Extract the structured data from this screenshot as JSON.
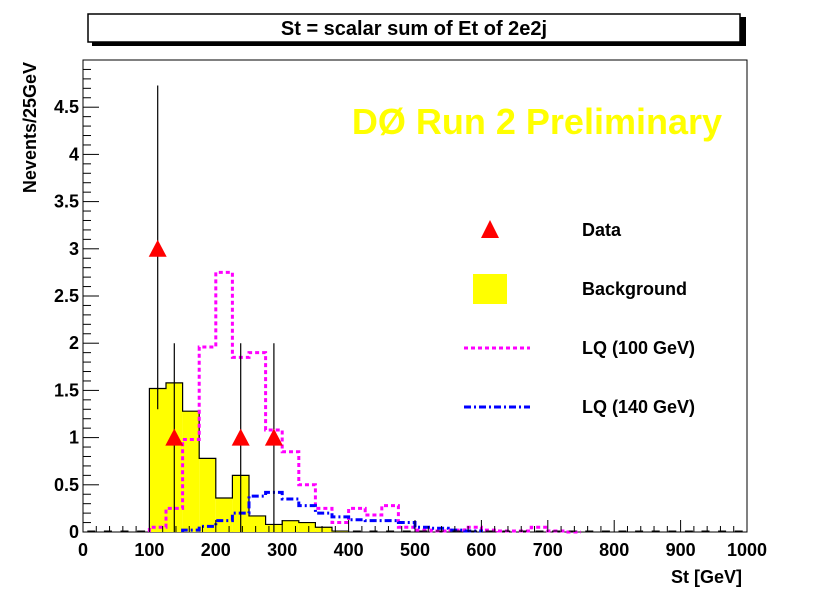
{
  "chart_data": {
    "type": "bar",
    "title": "St = scalar sum of Et of 2e2j",
    "xlabel": "St [GeV]",
    "ylabel": "Nevents/25GeV",
    "annotation": "DØ Run 2 Preliminary",
    "xlim": [
      0,
      1000
    ],
    "ylim": [
      0,
      5
    ],
    "bin_width": 25,
    "x_ticks": [
      0,
      100,
      200,
      300,
      400,
      500,
      600,
      700,
      800,
      900,
      1000
    ],
    "x_tick_labels": [
      "0",
      "100",
      "200",
      "300",
      "400",
      "500",
      "600",
      "700",
      "800",
      "900",
      "1000"
    ],
    "y_ticks": [
      0,
      0.5,
      1,
      1.5,
      2,
      2.5,
      3,
      3.5,
      4,
      4.5
    ],
    "y_tick_labels": [
      "0",
      "0.5",
      "1",
      "1.5",
      "2",
      "2.5",
      "3",
      "3.5",
      "4",
      "4.5"
    ],
    "colors": {
      "data": "#ff0000",
      "background": "#ffff00",
      "lq100": "#ff00ff",
      "lq140": "#0000ff",
      "watermark": "#ffff00"
    },
    "legend": [
      {
        "key": "data",
        "label": "Data"
      },
      {
        "key": "background",
        "label": "Background"
      },
      {
        "key": "lq100",
        "label": "LQ (100 GeV)"
      },
      {
        "key": "lq140",
        "label": "LQ (140 GeV)"
      }
    ],
    "background": {
      "bin_edges": [
        100,
        125,
        150,
        175,
        200,
        225,
        250,
        275,
        300,
        325,
        350,
        375,
        400
      ],
      "values": [
        1.52,
        1.58,
        1.28,
        0.78,
        0.36,
        0.6,
        0.17,
        0.08,
        0.12,
        0.1,
        0.05,
        0.01
      ]
    },
    "lq100": {
      "bin_edges": [
        100,
        125,
        150,
        175,
        200,
        225,
        250,
        275,
        300,
        325,
        350,
        375,
        400,
        425,
        450,
        475,
        500,
        525,
        550,
        575,
        600,
        625,
        650,
        675,
        700,
        725,
        750
      ],
      "values": [
        0.05,
        0.25,
        0.98,
        1.96,
        2.75,
        1.85,
        1.9,
        1.08,
        0.85,
        0.5,
        0.25,
        0.1,
        0.25,
        0.18,
        0.28,
        0.05,
        0.02,
        0.01,
        0.02,
        0.05,
        0.02,
        0.01,
        0.01,
        0.05,
        0.01,
        0.0
      ]
    },
    "lq140": {
      "bin_edges": [
        150,
        175,
        200,
        225,
        250,
        275,
        300,
        325,
        350,
        375,
        400,
        425,
        450,
        475,
        500,
        525,
        550,
        575,
        600
      ],
      "values": [
        0.02,
        0.06,
        0.12,
        0.2,
        0.38,
        0.42,
        0.35,
        0.28,
        0.2,
        0.16,
        0.13,
        0.12,
        0.12,
        0.1,
        0.05,
        0.04,
        0.02,
        0.01
      ]
    },
    "data_points": [
      {
        "x": 112.5,
        "y": 3,
        "err_low": 1.3,
        "err_high": 4.73
      },
      {
        "x": 137.5,
        "y": 1,
        "err_low": 0,
        "err_high": 2.0
      },
      {
        "x": 237.5,
        "y": 1,
        "err_low": 0,
        "err_high": 2.0
      },
      {
        "x": 287.5,
        "y": 1,
        "err_low": 0,
        "err_high": 2.0
      }
    ],
    "zero_bins_x": [
      12.5,
      37.5,
      62.5,
      87.5,
      412.5,
      437.5,
      462.5,
      487.5,
      512.5,
      537.5,
      562.5,
      587.5,
      612.5,
      637.5,
      662.5,
      687.5,
      712.5,
      737.5,
      762.5,
      787.5,
      812.5,
      837.5,
      862.5,
      887.5,
      912.5,
      937.5,
      962.5,
      987.5
    ]
  }
}
